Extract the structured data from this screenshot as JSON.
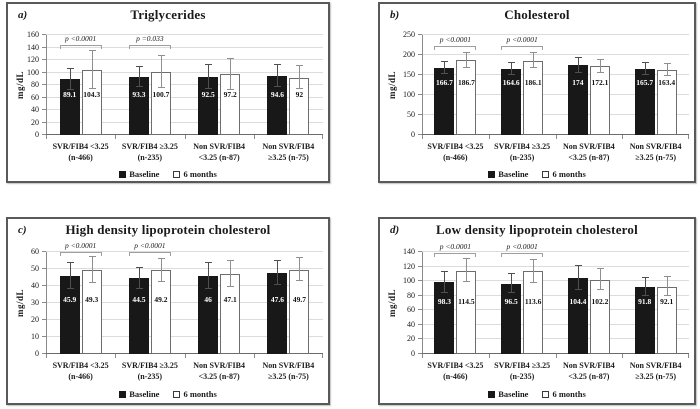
{
  "figure": {
    "legend": [
      {
        "label": "Baseline",
        "swatch": "filled-black-square"
      },
      {
        "label": "6 months",
        "swatch": "open-white-square"
      }
    ],
    "colors": {
      "bar_baseline": "#181818",
      "bar_6months": "#ffffff",
      "bar_6months_border": "#6d6d6d",
      "error_baseline": "#4f4f4f",
      "error_6months": "#8f8f8f",
      "gridline": "#dcdcdc",
      "axis": "#8a8a8a",
      "panel_border": "#595959",
      "bracket": "#9e9e9e"
    }
  },
  "chart_data": [
    {
      "type": "bar",
      "panel_label": "a)",
      "title": "Triglycerides",
      "ylabel": "mg/dL",
      "ylim": [
        0,
        160
      ],
      "ytick_step": 20,
      "yticks": [
        0,
        20,
        40,
        60,
        80,
        100,
        120,
        140,
        160
      ],
      "grid": true,
      "legend_position": "bottom",
      "categories": [
        [
          "SVR/FIB4 <3.25",
          "(n-466)"
        ],
        [
          "SVR/FIB4 ≥3.25",
          "(n-235)"
        ],
        [
          "Non SVR/FIB4",
          "<3.25 (n-87)"
        ],
        [
          "Non SVR/FIB4",
          "≥3.25 (n-75)"
        ]
      ],
      "series": [
        {
          "name": "Baseline",
          "values": [
            89.1,
            93.3,
            92.5,
            94.6
          ],
          "errors": [
            17,
            16,
            19,
            18
          ]
        },
        {
          "name": "6 months",
          "values": [
            104.3,
            100.7,
            97.2,
            92
          ],
          "errors": [
            30,
            26,
            25,
            18
          ]
        }
      ],
      "annotations": [
        {
          "group": 0,
          "text": "p <0.0001"
        },
        {
          "group": 1,
          "text": "p =0.033"
        }
      ],
      "label_y": 64,
      "bracket_y": 138
    },
    {
      "type": "bar",
      "panel_label": "b)",
      "title": "Cholesterol",
      "ylabel": "mg/dL",
      "ylim": [
        0,
        250
      ],
      "ytick_step": 50,
      "yticks": [
        0,
        50,
        100,
        150,
        200,
        250
      ],
      "grid": true,
      "legend_position": "bottom",
      "categories": [
        [
          "SVR/FIB4 <3.25",
          "(n-466)"
        ],
        [
          "SVR/FIB4 ≥3.25",
          "(n-235)"
        ],
        [
          "Non SVR/FIB4",
          "<3.25 (n-87)"
        ],
        [
          "Non SVR/FIB4",
          "≥3.25 (n-75)"
        ]
      ],
      "series": [
        {
          "name": "Baseline",
          "values": [
            166.7,
            164.6,
            174,
            165.7
          ],
          "errors": [
            15,
            15,
            18,
            15
          ]
        },
        {
          "name": "6 months",
          "values": [
            186.7,
            186.1,
            172.1,
            163.4
          ],
          "errors": [
            18,
            18,
            16,
            15
          ]
        }
      ],
      "annotations": [
        {
          "group": 0,
          "text": "p <0.0001"
        },
        {
          "group": 1,
          "text": "p <0.0001"
        }
      ],
      "label_y": 130,
      "bracket_y": 212
    },
    {
      "type": "bar",
      "panel_label": "c)",
      "title": "High density lipoprotein cholesterol",
      "ylabel": "mg/dL",
      "ylim": [
        0,
        60
      ],
      "ytick_step": 10,
      "yticks": [
        0,
        10,
        20,
        30,
        40,
        50,
        60
      ],
      "grid": true,
      "legend_position": "bottom",
      "categories": [
        [
          "SVR/FIB4 <3.25",
          "(n-466)"
        ],
        [
          "SVR/FIB4 ≥3.25",
          "(n-235)"
        ],
        [
          "Non SVR/FIB4",
          "<3.25 (n-87)"
        ],
        [
          "Non SVR/FIB4",
          "≥3.25 (n-75)"
        ]
      ],
      "series": [
        {
          "name": "Baseline",
          "values": [
            45.9,
            44.5,
            46,
            47.6
          ],
          "errors": [
            7.4,
            6,
            7.5,
            7.2
          ]
        },
        {
          "name": "6 months",
          "values": [
            49.3,
            49.2,
            47.1,
            49.7
          ],
          "errors": [
            7.7,
            6.8,
            7.5,
            7
          ]
        }
      ],
      "annotations": [
        {
          "group": 0,
          "text": "p <0.0001"
        },
        {
          "group": 1,
          "text": "p <0.0001"
        }
      ],
      "label_y": 32,
      "bracket_y": 57.5
    },
    {
      "type": "bar",
      "panel_label": "d)",
      "title": "Low density lipoprotein cholesterol",
      "ylabel": "mg/dL",
      "ylim": [
        0,
        140
      ],
      "ytick_step": 20,
      "yticks": [
        0,
        20,
        40,
        60,
        80,
        100,
        120,
        140
      ],
      "grid": true,
      "legend_position": "bottom",
      "categories": [
        [
          "SVR/FIB4 <3.25",
          "(n-466)"
        ],
        [
          "SVR/FIB4 ≥3.25",
          "(n-235)"
        ],
        [
          "Non SVR/FIB4",
          "<3.25 (n-87)"
        ],
        [
          "Non SVR/FIB4",
          "≥3.25 (n-75)"
        ]
      ],
      "series": [
        {
          "name": "Baseline",
          "values": [
            98.3,
            96.5,
            104.4,
            91.8
          ],
          "errors": [
            14,
            13,
            16,
            12
          ]
        },
        {
          "name": "6 months",
          "values": [
            114.5,
            113.6,
            102.2,
            92.1
          ],
          "errors": [
            15.5,
            15.5,
            14,
            13
          ]
        }
      ],
      "annotations": [
        {
          "group": 0,
          "text": "p <0.0001"
        },
        {
          "group": 1,
          "text": "p <0.0001"
        }
      ],
      "label_y": 71,
      "bracket_y": 133
    }
  ]
}
